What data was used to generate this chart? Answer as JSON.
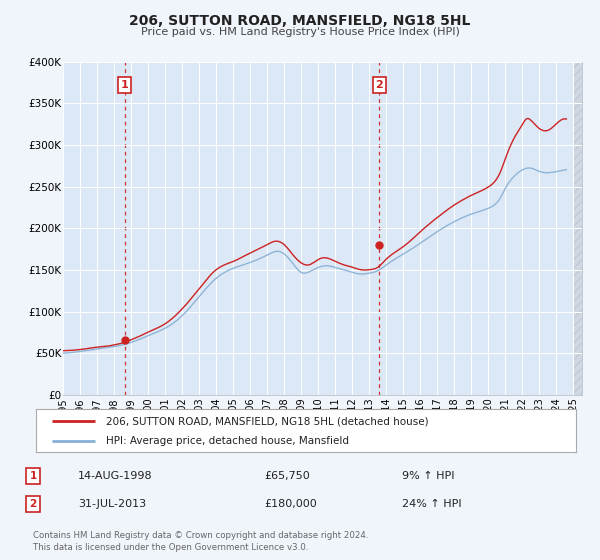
{
  "title": "206, SUTTON ROAD, MANSFIELD, NG18 5HL",
  "subtitle": "Price paid vs. HM Land Registry's House Price Index (HPI)",
  "bg_color": "#f0f4fb",
  "plot_bg_color": "#dce8f5",
  "grid_color": "#ffffff",
  "hpi_color": "#85afd4",
  "price_color": "#cc2222",
  "marker_color": "#cc2222",
  "vline_color": "#cc2222",
  "ylim": [
    0,
    400000
  ],
  "yticks": [
    0,
    50000,
    100000,
    150000,
    200000,
    250000,
    300000,
    350000,
    400000
  ],
  "ytick_labels": [
    "£0",
    "£50K",
    "£100K",
    "£150K",
    "£200K",
    "£250K",
    "£300K",
    "£350K",
    "£400K"
  ],
  "xlim_start": 1995.0,
  "xlim_end": 2025.5,
  "xtick_years": [
    1995,
    1996,
    1997,
    1998,
    1999,
    2000,
    2001,
    2002,
    2003,
    2004,
    2005,
    2006,
    2007,
    2008,
    2009,
    2010,
    2011,
    2012,
    2013,
    2014,
    2015,
    2016,
    2017,
    2018,
    2019,
    2020,
    2021,
    2022,
    2023,
    2024,
    2025
  ],
  "sale1_x": 1998.62,
  "sale1_y": 65750,
  "sale1_label": "1",
  "sale1_vline_x": 1998.62,
  "sale2_x": 2013.58,
  "sale2_y": 180000,
  "sale2_label": "2",
  "sale2_vline_x": 2013.58,
  "legend_label_price": "206, SUTTON ROAD, MANSFIELD, NG18 5HL (detached house)",
  "legend_label_hpi": "HPI: Average price, detached house, Mansfield",
  "annotation1_num": "1",
  "annotation1_date": "14-AUG-1998",
  "annotation1_price": "£65,750",
  "annotation1_hpi": "9% ↑ HPI",
  "annotation2_num": "2",
  "annotation2_date": "31-JUL-2013",
  "annotation2_price": "£180,000",
  "annotation2_hpi": "24% ↑ HPI",
  "footer": "Contains HM Land Registry data © Crown copyright and database right 2024.\nThis data is licensed under the Open Government Licence v3.0."
}
